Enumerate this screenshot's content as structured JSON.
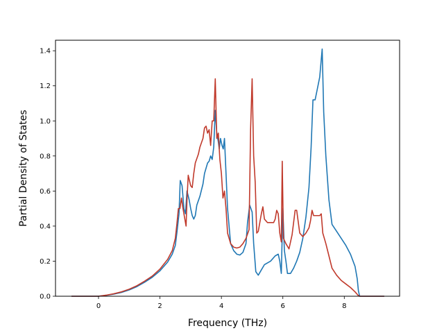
{
  "chart_data": {
    "type": "line",
    "title": "",
    "xlabel": "Frequency (THz)",
    "ylabel": "Partial Density of States",
    "xlim": [
      -1.4,
      9.8
    ],
    "ylim": [
      0,
      1.46
    ],
    "xticks": [
      0,
      2,
      4,
      6,
      8
    ],
    "yticks": [
      0.0,
      0.2,
      0.4,
      0.6,
      0.8,
      1.0,
      1.2,
      1.4
    ],
    "grid": false,
    "legend": "none",
    "series": [
      {
        "color": "#1f77b4",
        "points": [
          [
            -0.88,
            0.0
          ],
          [
            0.0,
            0.0
          ],
          [
            0.25,
            0.005
          ],
          [
            0.5,
            0.012
          ],
          [
            0.75,
            0.022
          ],
          [
            1.0,
            0.036
          ],
          [
            1.25,
            0.055
          ],
          [
            1.5,
            0.08
          ],
          [
            1.75,
            0.108
          ],
          [
            2.0,
            0.145
          ],
          [
            2.25,
            0.195
          ],
          [
            2.4,
            0.24
          ],
          [
            2.5,
            0.29
          ],
          [
            2.55,
            0.36
          ],
          [
            2.62,
            0.47
          ],
          [
            2.66,
            0.66
          ],
          [
            2.72,
            0.63
          ],
          [
            2.78,
            0.5
          ],
          [
            2.83,
            0.47
          ],
          [
            2.88,
            0.6
          ],
          [
            2.95,
            0.55
          ],
          [
            3.0,
            0.5
          ],
          [
            3.05,
            0.46
          ],
          [
            3.1,
            0.44
          ],
          [
            3.15,
            0.46
          ],
          [
            3.2,
            0.52
          ],
          [
            3.3,
            0.57
          ],
          [
            3.4,
            0.64
          ],
          [
            3.45,
            0.7
          ],
          [
            3.5,
            0.73
          ],
          [
            3.55,
            0.76
          ],
          [
            3.6,
            0.77
          ],
          [
            3.65,
            0.8
          ],
          [
            3.7,
            0.78
          ],
          [
            3.75,
            0.85
          ],
          [
            3.8,
            1.06
          ],
          [
            3.85,
            0.93
          ],
          [
            3.9,
            0.88
          ],
          [
            3.93,
            0.84
          ],
          [
            3.97,
            0.9
          ],
          [
            4.02,
            0.86
          ],
          [
            4.06,
            0.84
          ],
          [
            4.1,
            0.9
          ],
          [
            4.15,
            0.7
          ],
          [
            4.2,
            0.5
          ],
          [
            4.3,
            0.3
          ],
          [
            4.4,
            0.26
          ],
          [
            4.5,
            0.24
          ],
          [
            4.6,
            0.235
          ],
          [
            4.7,
            0.25
          ],
          [
            4.8,
            0.3
          ],
          [
            4.85,
            0.42
          ],
          [
            4.92,
            0.52
          ],
          [
            5.0,
            0.48
          ],
          [
            5.05,
            0.3
          ],
          [
            5.12,
            0.14
          ],
          [
            5.2,
            0.12
          ],
          [
            5.3,
            0.15
          ],
          [
            5.4,
            0.18
          ],
          [
            5.6,
            0.2
          ],
          [
            5.75,
            0.23
          ],
          [
            5.85,
            0.24
          ],
          [
            5.9,
            0.2
          ],
          [
            5.95,
            0.13
          ],
          [
            6.0,
            0.5
          ],
          [
            6.05,
            0.26
          ],
          [
            6.1,
            0.2
          ],
          [
            6.15,
            0.13
          ],
          [
            6.25,
            0.13
          ],
          [
            6.35,
            0.16
          ],
          [
            6.45,
            0.2
          ],
          [
            6.55,
            0.25
          ],
          [
            6.65,
            0.33
          ],
          [
            6.75,
            0.45
          ],
          [
            6.85,
            0.62
          ],
          [
            6.92,
            0.85
          ],
          [
            6.98,
            1.12
          ],
          [
            7.05,
            1.12
          ],
          [
            7.12,
            1.18
          ],
          [
            7.2,
            1.25
          ],
          [
            7.25,
            1.35
          ],
          [
            7.28,
            1.41
          ],
          [
            7.33,
            1.05
          ],
          [
            7.4,
            0.8
          ],
          [
            7.5,
            0.55
          ],
          [
            7.6,
            0.41
          ],
          [
            7.75,
            0.37
          ],
          [
            7.9,
            0.33
          ],
          [
            8.05,
            0.29
          ],
          [
            8.2,
            0.24
          ],
          [
            8.35,
            0.17
          ],
          [
            8.42,
            0.1
          ],
          [
            8.46,
            0.03
          ],
          [
            8.5,
            0.0
          ],
          [
            9.3,
            0.0
          ]
        ]
      },
      {
        "color": "#c0392b",
        "points": [
          [
            -0.88,
            0.0
          ],
          [
            0.0,
            0.0
          ],
          [
            0.25,
            0.006
          ],
          [
            0.5,
            0.014
          ],
          [
            0.75,
            0.025
          ],
          [
            1.0,
            0.04
          ],
          [
            1.25,
            0.06
          ],
          [
            1.5,
            0.086
          ],
          [
            1.75,
            0.115
          ],
          [
            2.0,
            0.155
          ],
          [
            2.25,
            0.21
          ],
          [
            2.4,
            0.26
          ],
          [
            2.5,
            0.33
          ],
          [
            2.55,
            0.41
          ],
          [
            2.6,
            0.5
          ],
          [
            2.65,
            0.5
          ],
          [
            2.7,
            0.56
          ],
          [
            2.75,
            0.5
          ],
          [
            2.8,
            0.45
          ],
          [
            2.85,
            0.4
          ],
          [
            2.88,
            0.55
          ],
          [
            2.92,
            0.69
          ],
          [
            3.0,
            0.63
          ],
          [
            3.05,
            0.62
          ],
          [
            3.1,
            0.7
          ],
          [
            3.15,
            0.76
          ],
          [
            3.25,
            0.81
          ],
          [
            3.3,
            0.85
          ],
          [
            3.4,
            0.9
          ],
          [
            3.45,
            0.96
          ],
          [
            3.5,
            0.97
          ],
          [
            3.55,
            0.93
          ],
          [
            3.6,
            0.95
          ],
          [
            3.65,
            0.86
          ],
          [
            3.7,
            1.0
          ],
          [
            3.75,
            1.0
          ],
          [
            3.8,
            1.24
          ],
          [
            3.85,
            0.9
          ],
          [
            3.9,
            0.93
          ],
          [
            3.95,
            0.78
          ],
          [
            4.0,
            0.7
          ],
          [
            4.05,
            0.56
          ],
          [
            4.1,
            0.6
          ],
          [
            4.15,
            0.5
          ],
          [
            4.2,
            0.36
          ],
          [
            4.3,
            0.3
          ],
          [
            4.4,
            0.28
          ],
          [
            4.5,
            0.275
          ],
          [
            4.6,
            0.28
          ],
          [
            4.7,
            0.3
          ],
          [
            4.8,
            0.33
          ],
          [
            4.9,
            0.38
          ],
          [
            4.95,
            0.95
          ],
          [
            5.0,
            1.24
          ],
          [
            5.05,
            0.8
          ],
          [
            5.1,
            0.65
          ],
          [
            5.15,
            0.36
          ],
          [
            5.2,
            0.37
          ],
          [
            5.3,
            0.47
          ],
          [
            5.35,
            0.51
          ],
          [
            5.4,
            0.44
          ],
          [
            5.5,
            0.42
          ],
          [
            5.6,
            0.42
          ],
          [
            5.7,
            0.42
          ],
          [
            5.75,
            0.44
          ],
          [
            5.8,
            0.49
          ],
          [
            5.85,
            0.47
          ],
          [
            5.9,
            0.36
          ],
          [
            5.95,
            0.31
          ],
          [
            5.98,
            0.77
          ],
          [
            6.02,
            0.33
          ],
          [
            6.1,
            0.3
          ],
          [
            6.2,
            0.27
          ],
          [
            6.3,
            0.35
          ],
          [
            6.4,
            0.49
          ],
          [
            6.45,
            0.49
          ],
          [
            6.55,
            0.36
          ],
          [
            6.65,
            0.34
          ],
          [
            6.75,
            0.36
          ],
          [
            6.85,
            0.39
          ],
          [
            6.9,
            0.43
          ],
          [
            6.95,
            0.49
          ],
          [
            7.0,
            0.46
          ],
          [
            7.1,
            0.46
          ],
          [
            7.2,
            0.46
          ],
          [
            7.25,
            0.47
          ],
          [
            7.3,
            0.36
          ],
          [
            7.4,
            0.3
          ],
          [
            7.5,
            0.23
          ],
          [
            7.6,
            0.16
          ],
          [
            7.75,
            0.12
          ],
          [
            7.9,
            0.09
          ],
          [
            8.05,
            0.07
          ],
          [
            8.2,
            0.05
          ],
          [
            8.35,
            0.025
          ],
          [
            8.45,
            0.005
          ],
          [
            8.5,
            0.0
          ],
          [
            9.3,
            0.0
          ]
        ]
      }
    ]
  }
}
